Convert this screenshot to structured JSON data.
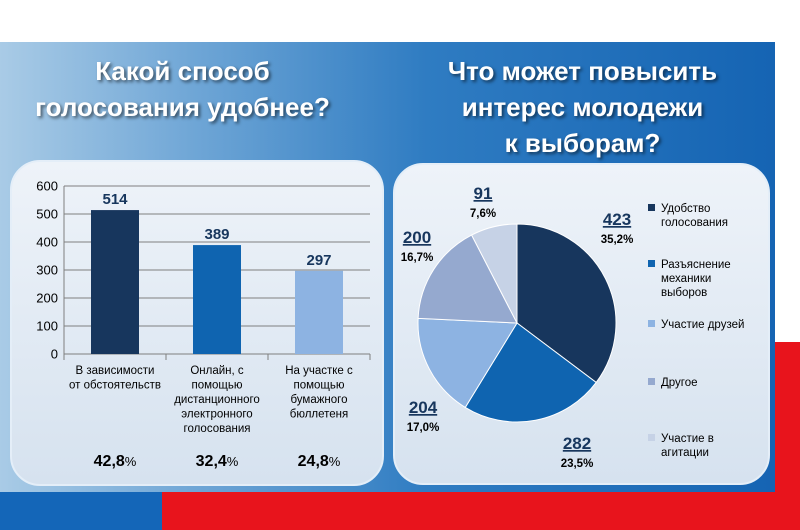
{
  "left_title": [
    "Какой способ",
    "голосования удобнее?"
  ],
  "right_title": [
    "Что может повысить",
    "интерес молодежи",
    "к выборам?"
  ],
  "chart_data": [
    {
      "type": "bar",
      "categories": [
        [
          "В зависимости",
          "от обстоятельств"
        ],
        [
          "Онлайн, с",
          "помощью",
          "дистанционного",
          "электронного",
          "голосования"
        ],
        [
          "На участке с",
          "помощью",
          "бумажного",
          "бюллетеня"
        ]
      ],
      "values": [
        514,
        389,
        297
      ],
      "value_labels": [
        "514",
        "389",
        "297"
      ],
      "percent_labels": [
        [
          "42,8",
          "%"
        ],
        [
          "32,4",
          "%"
        ],
        [
          "24,8",
          "%"
        ]
      ],
      "colors": [
        "#17365d",
        "#0f64b0",
        "#8db3e2"
      ],
      "ylim": [
        0,
        600
      ],
      "yticks": [
        "0",
        "100",
        "200",
        "300",
        "400",
        "500",
        "600"
      ],
      "grid": true
    },
    {
      "type": "pie",
      "labels": [
        [
          "Удобство",
          "голосования"
        ],
        [
          "Разъяснение",
          "механики",
          "выборов"
        ],
        [
          "Участие друзей"
        ],
        [
          "Другое"
        ],
        [
          "Участие в",
          "агитации"
        ]
      ],
      "values": [
        423,
        282,
        204,
        200,
        91
      ],
      "value_labels": [
        "423",
        "282",
        "204",
        "200",
        "91"
      ],
      "percent_labels": [
        "35,2%",
        "23,5%",
        "17,0%",
        "16,7%",
        "7,6%"
      ],
      "colors": [
        "#17365d",
        "#0f64b0",
        "#8db3e2",
        "#95a9cf",
        "#c6d2e6"
      ],
      "legend": "right"
    }
  ]
}
